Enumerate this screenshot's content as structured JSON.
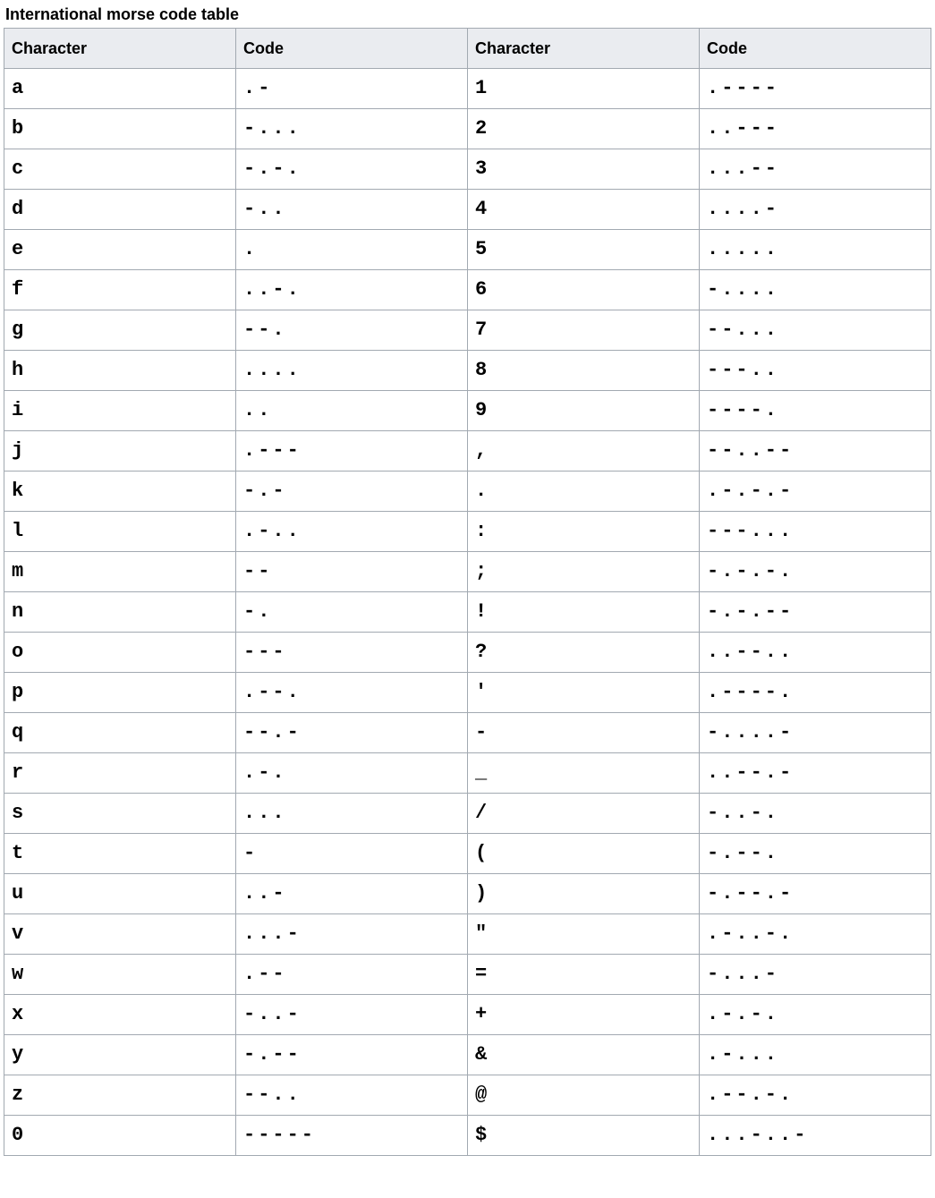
{
  "table": {
    "caption": "International morse code table",
    "headers": [
      "Character",
      "Code",
      "Character",
      "Code"
    ],
    "header_bg": "#eaecf0",
    "border_color": "#a2a9b1",
    "cell_bg": "#ffffff",
    "caption_fontsize": 18,
    "header_fontsize": 18,
    "cell_fontsize": 22,
    "cell_font": "monospace",
    "rows": [
      {
        "c1": "a",
        "m1": ".-",
        "c2": "1",
        "m2": ".----"
      },
      {
        "c1": "b",
        "m1": "-...",
        "c2": "2",
        "m2": "..---"
      },
      {
        "c1": "c",
        "m1": "-.-.",
        "c2": "3",
        "m2": "...--"
      },
      {
        "c1": "d",
        "m1": "-..",
        "c2": "4",
        "m2": "....-"
      },
      {
        "c1": "e",
        "m1": ".",
        "c2": "5",
        "m2": "....."
      },
      {
        "c1": "f",
        "m1": "..-.",
        "c2": "6",
        "m2": "-...."
      },
      {
        "c1": "g",
        "m1": "--.",
        "c2": "7",
        "m2": "--..."
      },
      {
        "c1": "h",
        "m1": "....",
        "c2": "8",
        "m2": "---.."
      },
      {
        "c1": "i",
        "m1": "..",
        "c2": "9",
        "m2": "----."
      },
      {
        "c1": "j",
        "m1": ".---",
        "c2": ",",
        "m2": "--..--"
      },
      {
        "c1": "k",
        "m1": "-.-",
        "c2": ".",
        "m2": ".-.-.-"
      },
      {
        "c1": "l",
        "m1": ".-..",
        "c2": ":",
        "m2": "---..."
      },
      {
        "c1": "m",
        "m1": "--",
        "c2": ";",
        "m2": "-.-.-."
      },
      {
        "c1": "n",
        "m1": "-.",
        "c2": "!",
        "m2": "-.-.--"
      },
      {
        "c1": "o",
        "m1": "---",
        "c2": "?",
        "m2": "..--.."
      },
      {
        "c1": "p",
        "m1": ".--.",
        "c2": "'",
        "m2": ".----."
      },
      {
        "c1": "q",
        "m1": "--.-",
        "c2": "-",
        "m2": "-....-"
      },
      {
        "c1": "r",
        "m1": ".-.",
        "c2": "_",
        "m2": "..--.-"
      },
      {
        "c1": "s",
        "m1": "...",
        "c2": "/",
        "m2": "-..-."
      },
      {
        "c1": "t",
        "m1": "-",
        "c2": "(",
        "m2": "-.--."
      },
      {
        "c1": "u",
        "m1": "..-",
        "c2": ")",
        "m2": "-.--.-"
      },
      {
        "c1": "v",
        "m1": "...-",
        "c2": "\"",
        "m2": ".-..-."
      },
      {
        "c1": "w",
        "m1": ".--",
        "c2": "=",
        "m2": "-...-"
      },
      {
        "c1": "x",
        "m1": "-..-",
        "c2": "+",
        "m2": ".-.-."
      },
      {
        "c1": "y",
        "m1": "-.--",
        "c2": "&",
        "m2": ".-..."
      },
      {
        "c1": "z",
        "m1": "--..",
        "c2": "@",
        "m2": ".--.-."
      },
      {
        "c1": "0",
        "m1": "-----",
        "c2": "$",
        "m2": "...-..-"
      }
    ]
  }
}
